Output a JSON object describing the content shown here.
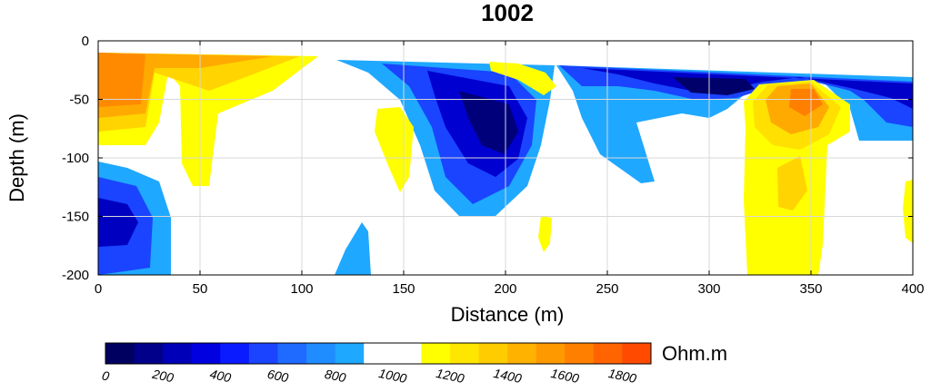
{
  "chart_data": {
    "type": "heatmap",
    "title": "1002",
    "xlabel": "Distance (m)",
    "ylabel": "Depth (m)",
    "xlim": [
      0,
      400
    ],
    "ylim": [
      -200,
      0
    ],
    "x_ticks": [
      0,
      50,
      100,
      150,
      200,
      250,
      300,
      350,
      400
    ],
    "y_ticks": [
      0,
      -50,
      -100,
      -150,
      -200
    ],
    "grid": true,
    "colorbar": {
      "label": "Ohm.m",
      "placement": "bottom",
      "tick_values": [
        0,
        200,
        400,
        600,
        800,
        1000,
        1200,
        1400,
        1600,
        1800
      ],
      "range": [
        0,
        1900
      ],
      "colors": [
        "#000060",
        "#00008a",
        "#0000b8",
        "#0000e0",
        "#0a1cff",
        "#1a44ff",
        "#1f6bff",
        "#1f8cff",
        "#1fa8ff",
        "#ffffff",
        "#ffffff",
        "#ffff00",
        "#ffe600",
        "#ffcc00",
        "#ffb200",
        "#ff9900",
        "#ff7f00",
        "#ff6400",
        "#ff4a00"
      ]
    },
    "anomalies": [
      {
        "x": [
          0,
          30
        ],
        "depth": [
          -10,
          -90
        ],
        "resistivity": 1650
      },
      {
        "x": [
          40,
          110
        ],
        "depth": [
          -10,
          -125
        ],
        "resistivity": 1250
      },
      {
        "x": [
          0,
          35
        ],
        "depth": [
          -105,
          -200
        ],
        "resistivity": 350
      },
      {
        "x": [
          120,
          210
        ],
        "depth": [
          -15,
          -145
        ],
        "resistivity": 150
      },
      {
        "x": [
          225,
          400
        ],
        "depth": [
          -20,
          -45
        ],
        "resistivity": 200
      },
      {
        "x": [
          320,
          370
        ],
        "depth": [
          -30,
          -200
        ],
        "resistivity": 1600
      },
      {
        "x": [
          115,
          135
        ],
        "depth": [
          -155,
          -200
        ],
        "resistivity": 850
      }
    ]
  }
}
